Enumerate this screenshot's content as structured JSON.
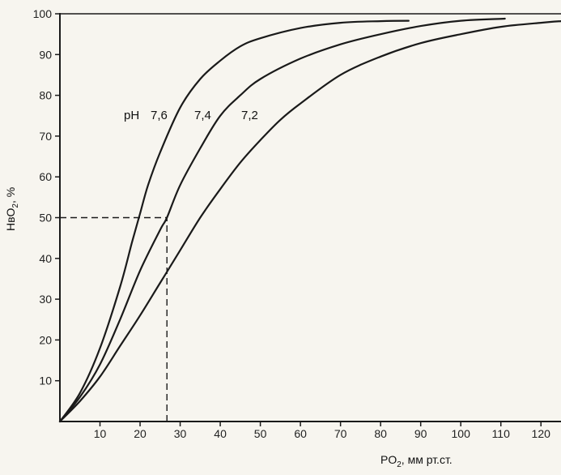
{
  "chart_data": {
    "type": "line",
    "xlabel": {
      "base": "PO",
      "sub": "2",
      "rest": ", мм рт.ст."
    },
    "ylabel": {
      "base": "HвO",
      "sub": "2",
      "rest": ", %"
    },
    "xlim": [
      0,
      125
    ],
    "ylim": [
      0,
      100
    ],
    "x_ticks": [
      10,
      20,
      30,
      40,
      50,
      60,
      70,
      80,
      90,
      100,
      110,
      120
    ],
    "y_ticks": [
      10,
      20,
      30,
      40,
      50,
      60,
      70,
      80,
      90,
      100
    ],
    "annotation_prefix": "pH",
    "series": [
      {
        "name": "7,6",
        "points": [
          [
            0,
            0
          ],
          [
            5,
            7
          ],
          [
            10,
            18
          ],
          [
            15,
            33
          ],
          [
            18,
            44
          ],
          [
            20,
            51
          ],
          [
            22,
            58
          ],
          [
            25,
            66
          ],
          [
            30,
            77
          ],
          [
            35,
            84
          ],
          [
            40,
            88.5
          ],
          [
            45,
            92
          ],
          [
            50,
            94
          ],
          [
            60,
            96.5
          ],
          [
            70,
            97.8
          ],
          [
            80,
            98.2
          ],
          [
            87,
            98.3
          ]
        ]
      },
      {
        "name": "7,4",
        "points": [
          [
            0,
            0
          ],
          [
            5,
            6
          ],
          [
            10,
            14
          ],
          [
            15,
            25
          ],
          [
            20,
            37
          ],
          [
            25,
            47
          ],
          [
            26.7,
            50
          ],
          [
            30,
            58
          ],
          [
            35,
            67
          ],
          [
            40,
            75
          ],
          [
            45,
            80
          ],
          [
            50,
            84
          ],
          [
            60,
            89
          ],
          [
            70,
            92.5
          ],
          [
            80,
            95
          ],
          [
            90,
            97
          ],
          [
            100,
            98.3
          ],
          [
            111,
            98.8
          ]
        ]
      },
      {
        "name": "7,2",
        "points": [
          [
            0,
            0
          ],
          [
            5,
            5
          ],
          [
            10,
            11
          ],
          [
            15,
            18.5
          ],
          [
            20,
            26
          ],
          [
            25,
            34
          ],
          [
            30,
            42
          ],
          [
            35,
            50
          ],
          [
            40,
            57
          ],
          [
            45,
            63.5
          ],
          [
            50,
            69
          ],
          [
            55,
            74
          ],
          [
            60,
            78
          ],
          [
            70,
            85
          ],
          [
            80,
            89.5
          ],
          [
            90,
            92.8
          ],
          [
            100,
            95
          ],
          [
            110,
            96.8
          ],
          [
            120,
            97.8
          ],
          [
            125,
            98.2
          ]
        ]
      }
    ],
    "reference_lines": [
      {
        "type": "horizontal",
        "y": 50,
        "x_from": 0,
        "x_to": 26.7
      },
      {
        "type": "vertical",
        "x": 26.7,
        "y_from": 0,
        "y_to": 50
      }
    ]
  }
}
